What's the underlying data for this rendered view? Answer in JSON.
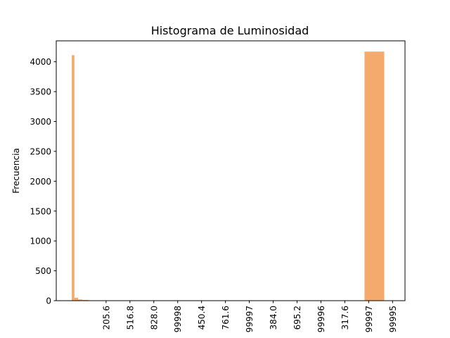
{
  "chart_data": {
    "type": "bar",
    "title": "Histograma de Luminosidad",
    "xlabel": "",
    "ylabel": "Frecuencia",
    "ylim": [
      0,
      4350
    ],
    "xlim": [
      -3.5,
      30.1
    ],
    "y_ticks": [
      0,
      500,
      1000,
      1500,
      2000,
      2500,
      3000,
      3500,
      4000
    ],
    "x_ticks": [
      {
        "pos": 1.3,
        "label": "205.6"
      },
      {
        "pos": 3.6,
        "label": "516.8"
      },
      {
        "pos": 5.9,
        "label": "828.0"
      },
      {
        "pos": 8.2,
        "label": "99998"
      },
      {
        "pos": 10.5,
        "label": "450.4"
      },
      {
        "pos": 12.8,
        "label": "761.6"
      },
      {
        "pos": 15.1,
        "label": "99997"
      },
      {
        "pos": 17.4,
        "label": "384.0"
      },
      {
        "pos": 19.7,
        "label": "695.2"
      },
      {
        "pos": 22.0,
        "label": "99996"
      },
      {
        "pos": 24.3,
        "label": "317.6"
      },
      {
        "pos": 26.6,
        "label": "99997"
      },
      {
        "pos": 28.9,
        "label": "99995"
      }
    ],
    "bars": [
      {
        "x0": -2.0,
        "x1": -1.75,
        "value": 4110
      },
      {
        "x0": -1.75,
        "x1": -1.4,
        "value": 50
      },
      {
        "x0": -1.4,
        "x1": -1.0,
        "value": 20
      },
      {
        "x0": -1.0,
        "x1": -0.4,
        "value": 12
      },
      {
        "x0": -0.4,
        "x1": 0.0,
        "value": 5
      },
      {
        "x0": 26.2,
        "x1": 28.1,
        "value": 4170
      }
    ],
    "bar_color": "#f4aa6c",
    "grid": false,
    "legend": "none"
  }
}
